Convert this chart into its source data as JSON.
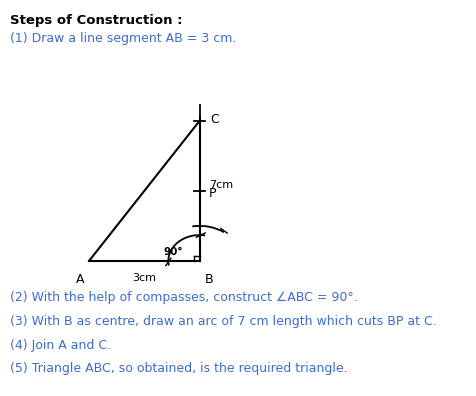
{
  "title": "Steps of Construction :",
  "step1": "(1) Draw a line segment AB = 3 cm.",
  "step2": "(2) With the help of compasses, construct ∠ABC = 90°.",
  "step3": "(3) With B as centre, draw an arc of 7 cm length which cuts BP at C.",
  "step4": "(4) Join A and C.",
  "step5": "(5) Triangle ABC, so obtained, is the required triangle.",
  "title_color": "#000000",
  "step_color": "#3d6bce",
  "bg_color": "#ffffff",
  "line_color": "#000000",
  "A": [
    0.08,
    0.3
  ],
  "B": [
    0.38,
    0.3
  ],
  "C": [
    0.38,
    0.76
  ],
  "P": [
    0.38,
    0.53
  ]
}
